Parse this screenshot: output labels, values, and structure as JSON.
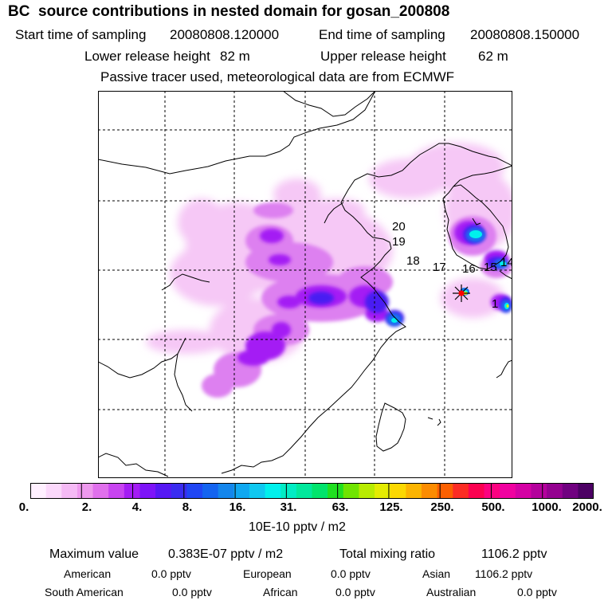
{
  "title": "BC  source contributions in nested domain for gosan_200808",
  "header": {
    "start_label": "Start time of sampling",
    "start_value": "20080808.120000",
    "end_label": "End time of sampling",
    "end_value": "20080808.150000",
    "lower_label": "Lower release height",
    "lower_value": "82 m",
    "upper_label": "Upper release height",
    "upper_value": "62 m",
    "note": "Passive tracer used, meteorological data are from ECMWF"
  },
  "map": {
    "trajectory_labels": [
      "20",
      "19",
      "18",
      "17",
      "16",
      "15",
      "14",
      "1"
    ],
    "receptor_color": "#ff0000"
  },
  "colorbar": {
    "labels": [
      "0.",
      "2.",
      "4.",
      "8.",
      "16.",
      "31.",
      "63.",
      "125.",
      "250.",
      "500.",
      "1000.",
      "2000."
    ],
    "colors": [
      "#fff0ff",
      "#fbd8fb",
      "#f5baf5",
      "#ee99ee",
      "#e070ec",
      "#c844f0",
      "#a41cf4",
      "#7d14f8",
      "#5618f4",
      "#3a2cf0",
      "#2046f4",
      "#1464f0",
      "#1486ec",
      "#10a8f0",
      "#10c8f0",
      "#00f0ec",
      "#00ecc4",
      "#00e89c",
      "#00e46c",
      "#20e020",
      "#70e400",
      "#b8ec00",
      "#e4ec00",
      "#fcd800",
      "#fcb400",
      "#fc8c00",
      "#fc6000",
      "#fc2c24",
      "#fc0050",
      "#fc0080",
      "#f000a0",
      "#d400a4",
      "#b4009c",
      "#940090",
      "#700080",
      "#4c0064"
    ],
    "units": "10E-10 pptv / m2"
  },
  "stats": {
    "max_label": "Maximum value",
    "max_value": "0.383E-07 pptv / m2",
    "total_label": "Total mixing ratio",
    "total_value": "1106.2 pptv",
    "regions": [
      {
        "name": "American",
        "value": "0.0 pptv"
      },
      {
        "name": "European",
        "value": "0.0 pptv"
      },
      {
        "name": "Asian",
        "value": "1106.2 pptv"
      },
      {
        "name": "South American",
        "value": "0.0 pptv"
      },
      {
        "name": "African",
        "value": "0.0 pptv"
      },
      {
        "name": "Australian",
        "value": "0.0 pptv"
      }
    ]
  }
}
